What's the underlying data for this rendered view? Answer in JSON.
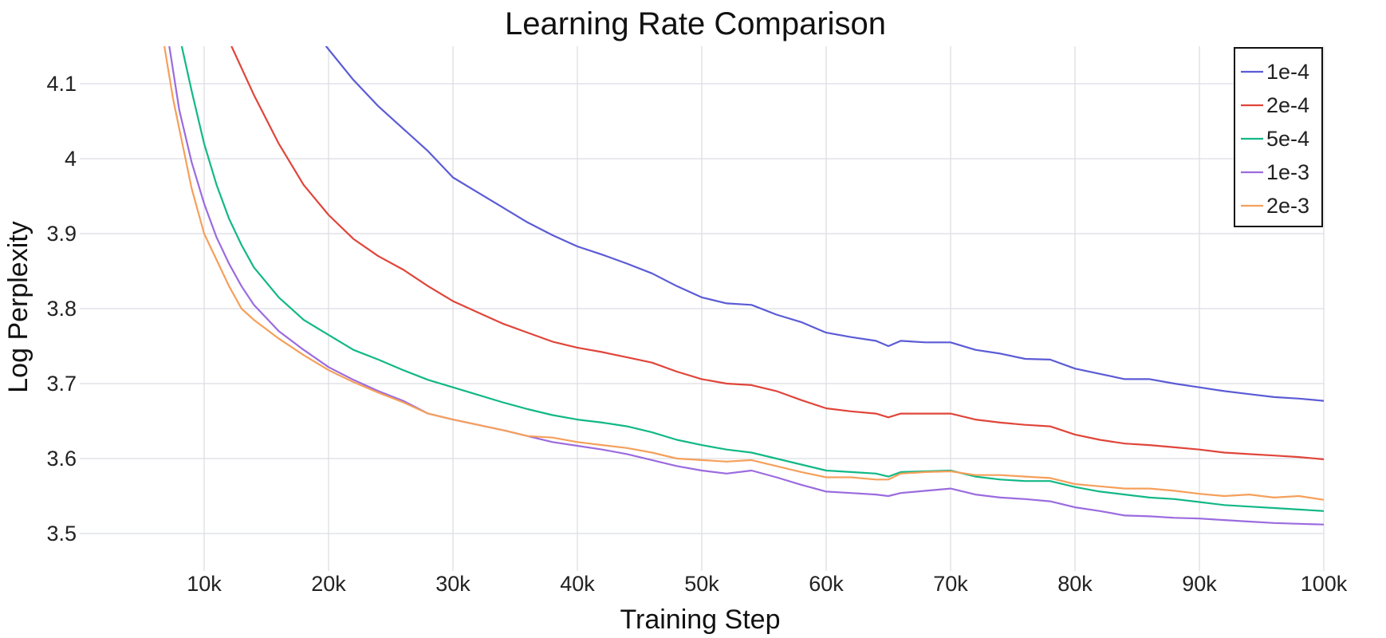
{
  "chart_data": {
    "type": "line",
    "title": "Learning Rate Comparison",
    "xlabel": "Training Step",
    "ylabel": "Log Perplexity",
    "xlim": [
      0,
      100000
    ],
    "ylim": [
      3.45,
      4.15
    ],
    "xticks": [
      10000,
      20000,
      30000,
      40000,
      50000,
      60000,
      70000,
      80000,
      90000,
      100000
    ],
    "xtick_labels": [
      "10k",
      "20k",
      "30k",
      "40k",
      "50k",
      "60k",
      "70k",
      "80k",
      "90k",
      "100k"
    ],
    "yticks": [
      3.5,
      3.6,
      3.7,
      3.8,
      3.9,
      4.0,
      4.1
    ],
    "ytick_labels": [
      "3.5",
      "3.6",
      "3.7",
      "3.8",
      "3.9",
      "4",
      "4.1"
    ],
    "grid": true,
    "legend_position": "top-right",
    "series": [
      {
        "name": "1e-4",
        "color": "#5b5bd6",
        "x": [
          19800,
          22000,
          24000,
          26000,
          28000,
          30000,
          32000,
          34000,
          36000,
          38000,
          40000,
          42000,
          44000,
          46000,
          48000,
          50000,
          52000,
          54000,
          56000,
          58000,
          60000,
          62000,
          64000,
          65000,
          66000,
          68000,
          70000,
          72000,
          74000,
          76000,
          78000,
          80000,
          82000,
          84000,
          86000,
          88000,
          90000,
          92000,
          94000,
          96000,
          98000,
          100000
        ],
        "y": [
          4.15,
          4.105,
          4.07,
          4.04,
          4.01,
          3.975,
          3.955,
          3.935,
          3.915,
          3.898,
          3.883,
          3.872,
          3.86,
          3.847,
          3.83,
          3.815,
          3.807,
          3.805,
          3.792,
          3.782,
          3.768,
          3.762,
          3.757,
          3.75,
          3.757,
          3.755,
          3.755,
          3.745,
          3.74,
          3.733,
          3.732,
          3.72,
          3.713,
          3.706,
          3.706,
          3.7,
          3.695,
          3.69,
          3.686,
          3.682,
          3.68,
          3.677
        ]
      },
      {
        "name": "2e-4",
        "color": "#e0453a",
        "x": [
          12200,
          14000,
          16000,
          18000,
          20000,
          22000,
          24000,
          26000,
          28000,
          30000,
          32000,
          34000,
          36000,
          38000,
          40000,
          42000,
          44000,
          46000,
          48000,
          50000,
          52000,
          54000,
          56000,
          58000,
          60000,
          62000,
          64000,
          65000,
          66000,
          68000,
          70000,
          72000,
          74000,
          76000,
          78000,
          80000,
          82000,
          84000,
          86000,
          88000,
          90000,
          92000,
          94000,
          96000,
          98000,
          100000
        ],
        "y": [
          4.15,
          4.085,
          4.02,
          3.965,
          3.925,
          3.893,
          3.87,
          3.852,
          3.83,
          3.81,
          3.795,
          3.78,
          3.768,
          3.756,
          3.748,
          3.742,
          3.735,
          3.728,
          3.716,
          3.706,
          3.7,
          3.698,
          3.69,
          3.678,
          3.667,
          3.663,
          3.66,
          3.655,
          3.66,
          3.66,
          3.66,
          3.652,
          3.648,
          3.645,
          3.643,
          3.632,
          3.625,
          3.62,
          3.618,
          3.615,
          3.612,
          3.608,
          3.606,
          3.604,
          3.602,
          3.599
        ]
      },
      {
        "name": "5e-4",
        "color": "#12b886",
        "x": [
          8200,
          9000,
          10000,
          11000,
          12000,
          13000,
          14000,
          16000,
          18000,
          20000,
          22000,
          24000,
          26000,
          28000,
          30000,
          32000,
          34000,
          36000,
          38000,
          40000,
          42000,
          44000,
          46000,
          48000,
          50000,
          52000,
          54000,
          56000,
          58000,
          60000,
          62000,
          64000,
          65000,
          66000,
          68000,
          70000,
          72000,
          74000,
          76000,
          78000,
          80000,
          82000,
          84000,
          86000,
          88000,
          90000,
          92000,
          94000,
          96000,
          98000,
          100000
        ],
        "y": [
          4.15,
          4.09,
          4.02,
          3.965,
          3.92,
          3.885,
          3.855,
          3.815,
          3.785,
          3.765,
          3.745,
          3.732,
          3.718,
          3.705,
          3.695,
          3.685,
          3.675,
          3.666,
          3.658,
          3.652,
          3.648,
          3.643,
          3.635,
          3.625,
          3.618,
          3.612,
          3.608,
          3.6,
          3.592,
          3.584,
          3.582,
          3.58,
          3.576,
          3.582,
          3.583,
          3.584,
          3.576,
          3.572,
          3.57,
          3.57,
          3.562,
          3.556,
          3.552,
          3.548,
          3.546,
          3.542,
          3.538,
          3.536,
          3.534,
          3.532,
          3.53
        ]
      },
      {
        "name": "1e-3",
        "color": "#9b6bdf",
        "x": [
          7200,
          8000,
          9000,
          10000,
          11000,
          12000,
          13000,
          14000,
          16000,
          18000,
          20000,
          22000,
          24000,
          26000,
          28000,
          30000,
          32000,
          34000,
          36000,
          38000,
          40000,
          42000,
          44000,
          46000,
          48000,
          50000,
          52000,
          54000,
          56000,
          58000,
          60000,
          62000,
          64000,
          65000,
          66000,
          68000,
          70000,
          72000,
          74000,
          76000,
          78000,
          80000,
          82000,
          84000,
          86000,
          88000,
          90000,
          92000,
          94000,
          96000,
          98000,
          100000
        ],
        "y": [
          4.15,
          4.065,
          3.995,
          3.94,
          3.895,
          3.86,
          3.83,
          3.805,
          3.77,
          3.745,
          3.722,
          3.705,
          3.69,
          3.677,
          3.66,
          3.652,
          3.645,
          3.638,
          3.63,
          3.622,
          3.617,
          3.612,
          3.606,
          3.598,
          3.59,
          3.584,
          3.58,
          3.584,
          3.575,
          3.565,
          3.556,
          3.554,
          3.552,
          3.55,
          3.554,
          3.557,
          3.56,
          3.552,
          3.548,
          3.546,
          3.543,
          3.535,
          3.53,
          3.524,
          3.523,
          3.521,
          3.52,
          3.518,
          3.516,
          3.514,
          3.513,
          3.512
        ]
      },
      {
        "name": "2e-3",
        "color": "#f5a05b",
        "x": [
          6800,
          7500,
          8000,
          9000,
          10000,
          11000,
          12000,
          13000,
          14000,
          16000,
          18000,
          20000,
          22000,
          24000,
          26000,
          28000,
          30000,
          32000,
          34000,
          36000,
          38000,
          40000,
          42000,
          44000,
          46000,
          48000,
          50000,
          52000,
          54000,
          56000,
          58000,
          60000,
          62000,
          64000,
          65000,
          66000,
          68000,
          70000,
          72000,
          74000,
          76000,
          78000,
          80000,
          82000,
          84000,
          86000,
          88000,
          90000,
          92000,
          94000,
          96000,
          98000,
          100000
        ],
        "y": [
          4.15,
          4.08,
          4.04,
          3.96,
          3.9,
          3.865,
          3.83,
          3.8,
          3.785,
          3.76,
          3.738,
          3.718,
          3.702,
          3.688,
          3.675,
          3.66,
          3.652,
          3.645,
          3.638,
          3.63,
          3.628,
          3.622,
          3.618,
          3.614,
          3.608,
          3.6,
          3.598,
          3.596,
          3.598,
          3.59,
          3.582,
          3.575,
          3.575,
          3.572,
          3.572,
          3.58,
          3.582,
          3.583,
          3.578,
          3.578,
          3.576,
          3.574,
          3.566,
          3.563,
          3.56,
          3.56,
          3.557,
          3.553,
          3.55,
          3.552,
          3.548,
          3.55,
          3.545
        ]
      }
    ]
  }
}
